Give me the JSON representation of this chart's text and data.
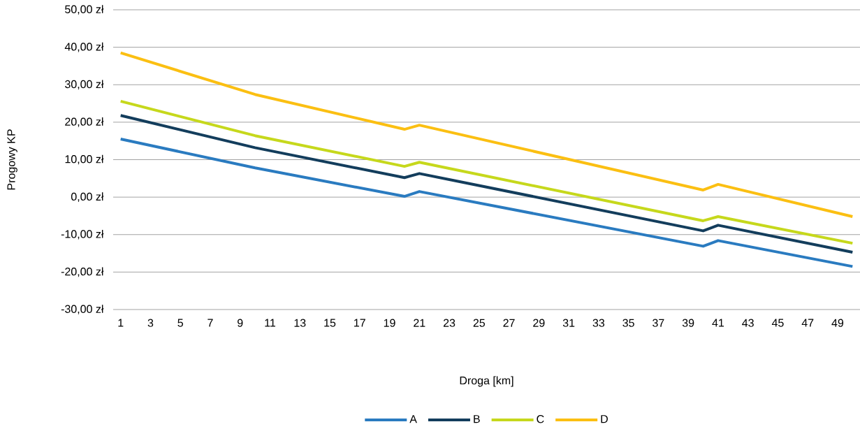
{
  "chart_data": {
    "type": "line",
    "xlabel": "Droga [km]",
    "ylabel": "Progowy KP",
    "xlim": [
      0.5,
      50.5
    ],
    "xticks": [
      1,
      3,
      5,
      7,
      9,
      11,
      13,
      15,
      17,
      19,
      21,
      23,
      25,
      27,
      29,
      31,
      33,
      35,
      37,
      39,
      41,
      43,
      45,
      47,
      49
    ],
    "ylim": [
      -30,
      50
    ],
    "yticks": [
      {
        "value": -30,
        "label": "-30,00 zł"
      },
      {
        "value": -20,
        "label": "-20,00 zł"
      },
      {
        "value": -10,
        "label": "-10,00 zł"
      },
      {
        "value": 0,
        "label": "0,00 zł"
      },
      {
        "value": 10,
        "label": "10,00 zł"
      },
      {
        "value": 20,
        "label": "20,00 zł"
      },
      {
        "value": 30,
        "label": "30,00 zł"
      },
      {
        "value": 40,
        "label": "40,00 zł"
      },
      {
        "value": 50,
        "label": "50,00 zł"
      }
    ],
    "grid": "y",
    "legend": "bottom",
    "series": [
      {
        "name": "A",
        "color": "#2a7bc0",
        "x": [
          1,
          10,
          20,
          21,
          40,
          41,
          50
        ],
        "values": [
          15.5,
          7.8,
          0.2,
          1.5,
          -13.1,
          -11.6,
          -18.5
        ]
      },
      {
        "name": "B",
        "color": "#133d5c",
        "x": [
          1,
          10,
          20,
          21,
          40,
          41,
          50
        ],
        "values": [
          21.8,
          13.2,
          5.2,
          6.3,
          -9.0,
          -7.5,
          -14.7
        ]
      },
      {
        "name": "C",
        "color": "#c6d81c",
        "x": [
          1,
          10,
          20,
          21,
          40,
          41,
          50
        ],
        "values": [
          25.6,
          16.4,
          8.2,
          9.3,
          -6.3,
          -5.2,
          -12.3
        ]
      },
      {
        "name": "D",
        "color": "#fbbf12",
        "x": [
          1,
          10,
          20,
          21,
          40,
          41,
          50
        ],
        "values": [
          38.5,
          27.4,
          18.1,
          19.2,
          1.9,
          3.4,
          -5.2
        ]
      }
    ]
  }
}
